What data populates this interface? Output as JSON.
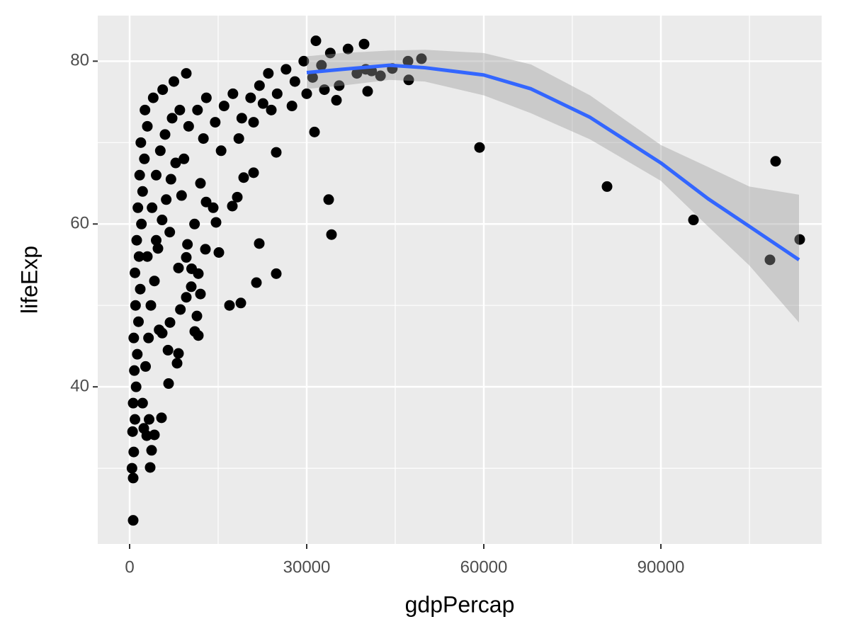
{
  "chart_data": {
    "type": "scatter",
    "x_label": "gdpPercap",
    "y_label": "lifeExp",
    "xlim": [
      -5400,
      117240
    ],
    "ylim": [
      20.7,
      85.6
    ],
    "xticks": [
      0,
      30000,
      60000,
      90000
    ],
    "yticks": [
      40,
      60,
      80
    ],
    "x_minor_grid": [
      15000,
      45000,
      75000,
      105000
    ],
    "y_minor_grid": [
      30,
      50,
      70
    ],
    "grid": true,
    "color": "#000000",
    "x": [
      600,
      600,
      39720,
      31560,
      47160,
      49440,
      47280,
      40320,
      35040,
      31320,
      59280,
      80880,
      95520,
      109440,
      108480,
      113520,
      33720,
      34200,
      24840,
      24840,
      21960,
      21480,
      21000,
      18840,
      16920,
      18240,
      17400,
      19320,
      15120,
      14640,
      14160,
      12960,
      12840,
      11640,
      11640,
      11040,
      11400,
      12000,
      10440,
      8280,
      8040,
      6600,
      5400,
      4200,
      3720,
      3480,
      2400,
      9600,
      8280,
      9600,
      6840,
      5520,
      400,
      700,
      500,
      900,
      600,
      1100,
      800,
      1300,
      700,
      1500,
      1000,
      1800,
      900,
      1600,
      1200,
      2000,
      1400,
      2200,
      1700,
      2500,
      1900,
      3000,
      2600,
      2200,
      2700,
      3200,
      3600,
      4200,
      4800,
      5500,
      6200,
      7000,
      7800,
      3000,
      3800,
      4500,
      5200,
      6000,
      7200,
      8500,
      4000,
      5600,
      7500,
      9600,
      3300,
      2900,
      10000,
      11500,
      13000,
      12500,
      14500,
      16000,
      17500,
      19000,
      20500,
      22000,
      23500,
      25000,
      26500,
      28000,
      29500,
      31000,
      32500,
      34000,
      35500,
      37000,
      38500,
      15500,
      18500,
      21000,
      24000,
      27500,
      30000,
      33000,
      12000,
      11000,
      9800,
      10500,
      8600,
      6500,
      5000,
      4500,
      6800,
      8800,
      9200,
      22600,
      40000,
      41000,
      42500,
      44500
    ],
    "y": [
      23.6,
      28.8,
      82.1,
      82.5,
      80.0,
      80.3,
      77.7,
      76.3,
      75.2,
      71.3,
      69.4,
      64.6,
      60.5,
      67.7,
      55.6,
      58.1,
      63.0,
      58.7,
      53.9,
      68.8,
      57.6,
      52.8,
      66.3,
      50.3,
      50.0,
      63.3,
      62.2,
      65.7,
      56.5,
      60.2,
      62.0,
      62.7,
      56.9,
      53.9,
      46.3,
      46.8,
      48.7,
      51.4,
      52.3,
      44.1,
      42.9,
      40.4,
      36.2,
      34.1,
      32.2,
      30.1,
      34.9,
      55.9,
      54.6,
      51.0,
      47.9,
      46.6,
      30.0,
      32.0,
      34.5,
      36.0,
      38.0,
      40.0,
      42.0,
      44.0,
      46.0,
      48.0,
      50.0,
      52.0,
      54.0,
      56.0,
      58.0,
      60.0,
      62.0,
      64.0,
      66.0,
      68.0,
      70.0,
      72.0,
      74.0,
      38.0,
      42.5,
      46.0,
      50.0,
      53.0,
      57.0,
      60.5,
      63.0,
      65.5,
      67.5,
      56.0,
      62.0,
      66.0,
      69.0,
      71.0,
      73.0,
      74.0,
      75.5,
      76.5,
      77.5,
      78.5,
      36.0,
      34.0,
      72.0,
      74.0,
      75.5,
      70.5,
      72.5,
      74.5,
      76.0,
      73.0,
      75.5,
      77.0,
      78.5,
      76.0,
      79.0,
      77.5,
      80.0,
      78.0,
      79.5,
      81.0,
      77.0,
      81.5,
      78.5,
      69.0,
      70.5,
      72.5,
      74.0,
      74.5,
      76.0,
      76.5,
      65.0,
      60.0,
      57.5,
      54.5,
      49.5,
      44.5,
      47.0,
      58.0,
      59.0,
      63.5,
      68.0,
      74.8,
      79.0,
      78.8,
      78.2,
      79.1
    ],
    "smooth": {
      "color": "#3366ff",
      "ribbon_color": "#999999",
      "x": [
        30000,
        36000,
        44000,
        50000,
        60000,
        68000,
        78000,
        90000,
        98000,
        105000,
        113400
      ],
      "y": [
        78.6,
        79.0,
        79.5,
        79.2,
        78.3,
        76.6,
        73.1,
        67.5,
        63.1,
        59.7,
        55.6
      ],
      "ymax": [
        80.6,
        81.0,
        81.3,
        81.4,
        81.0,
        79.6,
        75.8,
        69.7,
        67.0,
        64.6,
        63.6
      ],
      "ymin": [
        76.6,
        77.0,
        77.7,
        77.5,
        75.8,
        73.6,
        70.4,
        65.3,
        59.7,
        54.9,
        47.9
      ]
    }
  }
}
